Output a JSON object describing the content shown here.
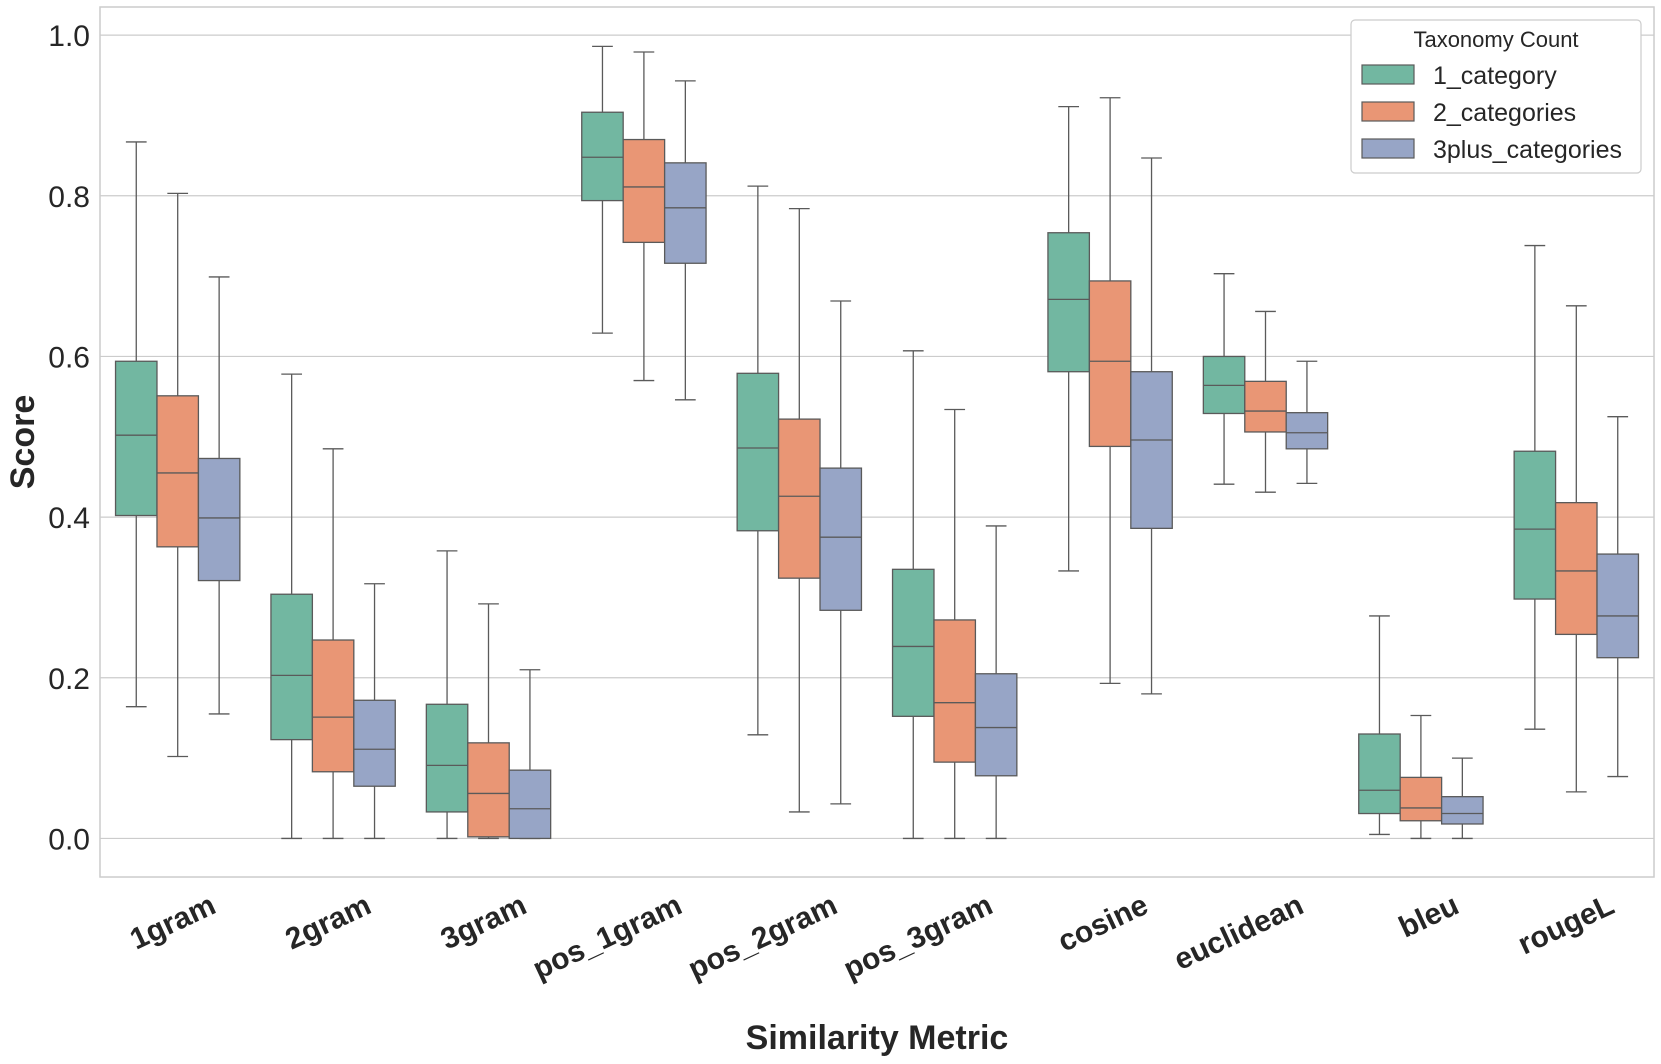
{
  "chart_data": {
    "type": "boxplot",
    "xlabel": "Similarity Metric",
    "ylabel": "Score",
    "ylim": [
      -0.048,
      1.035
    ],
    "yticks": [
      "0.0",
      "0.2",
      "0.4",
      "0.6",
      "0.8",
      "1.0"
    ],
    "grid": "horizontal",
    "legend": {
      "title": "Taxonomy Count",
      "placement": "top-right"
    },
    "categories": [
      "1gram",
      "2gram",
      "3gram",
      "pos_1gram",
      "pos_2gram",
      "pos_3gram",
      "cosine",
      "euclidean",
      "bleu",
      "rougeL"
    ],
    "series": [
      {
        "name": "1_category",
        "color": "#72b7a1",
        "boxes": [
          {
            "whislo": 0.164,
            "q1": 0.402,
            "med": 0.502,
            "q3": 0.594,
            "whishi": 0.867
          },
          {
            "whislo": 0.0,
            "q1": 0.123,
            "med": 0.203,
            "q3": 0.304,
            "whishi": 0.578
          },
          {
            "whislo": 0.0,
            "q1": 0.033,
            "med": 0.091,
            "q3": 0.167,
            "whishi": 0.358
          },
          {
            "whislo": 0.629,
            "q1": 0.794,
            "med": 0.848,
            "q3": 0.904,
            "whishi": 0.986
          },
          {
            "whislo": 0.129,
            "q1": 0.383,
            "med": 0.486,
            "q3": 0.579,
            "whishi": 0.812
          },
          {
            "whislo": 0.0,
            "q1": 0.152,
            "med": 0.239,
            "q3": 0.335,
            "whishi": 0.607
          },
          {
            "whislo": 0.333,
            "q1": 0.581,
            "med": 0.671,
            "q3": 0.754,
            "whishi": 0.911
          },
          {
            "whislo": 0.441,
            "q1": 0.529,
            "med": 0.564,
            "q3": 0.6,
            "whishi": 0.703
          },
          {
            "whislo": 0.005,
            "q1": 0.031,
            "med": 0.06,
            "q3": 0.13,
            "whishi": 0.277
          },
          {
            "whislo": 0.136,
            "q1": 0.298,
            "med": 0.385,
            "q3": 0.482,
            "whishi": 0.738
          }
        ]
      },
      {
        "name": "2_categories",
        "color": "#e99675",
        "boxes": [
          {
            "whislo": 0.102,
            "q1": 0.363,
            "med": 0.455,
            "q3": 0.551,
            "whishi": 0.803
          },
          {
            "whislo": 0.0,
            "q1": 0.083,
            "med": 0.151,
            "q3": 0.247,
            "whishi": 0.485
          },
          {
            "whislo": 0.0,
            "q1": 0.002,
            "med": 0.056,
            "q3": 0.119,
            "whishi": 0.292
          },
          {
            "whislo": 0.57,
            "q1": 0.742,
            "med": 0.811,
            "q3": 0.87,
            "whishi": 0.979
          },
          {
            "whislo": 0.033,
            "q1": 0.324,
            "med": 0.426,
            "q3": 0.522,
            "whishi": 0.784
          },
          {
            "whislo": 0.0,
            "q1": 0.095,
            "med": 0.169,
            "q3": 0.272,
            "whishi": 0.534
          },
          {
            "whislo": 0.193,
            "q1": 0.488,
            "med": 0.594,
            "q3": 0.694,
            "whishi": 0.922
          },
          {
            "whislo": 0.431,
            "q1": 0.506,
            "med": 0.532,
            "q3": 0.569,
            "whishi": 0.656
          },
          {
            "whislo": 0.0,
            "q1": 0.022,
            "med": 0.038,
            "q3": 0.076,
            "whishi": 0.153
          },
          {
            "whislo": 0.058,
            "q1": 0.254,
            "med": 0.333,
            "q3": 0.418,
            "whishi": 0.663
          }
        ]
      },
      {
        "name": "3plus_categories",
        "color": "#97a5c6",
        "boxes": [
          {
            "whislo": 0.155,
            "q1": 0.321,
            "med": 0.399,
            "q3": 0.473,
            "whishi": 0.699
          },
          {
            "whislo": 0.0,
            "q1": 0.065,
            "med": 0.111,
            "q3": 0.172,
            "whishi": 0.317
          },
          {
            "whislo": 0.0,
            "q1": 0.0,
            "med": 0.037,
            "q3": 0.085,
            "whishi": 0.21
          },
          {
            "whislo": 0.546,
            "q1": 0.716,
            "med": 0.785,
            "q3": 0.841,
            "whishi": 0.943
          },
          {
            "whislo": 0.043,
            "q1": 0.284,
            "med": 0.375,
            "q3": 0.461,
            "whishi": 0.669
          },
          {
            "whislo": 0.0,
            "q1": 0.078,
            "med": 0.138,
            "q3": 0.205,
            "whishi": 0.389
          },
          {
            "whislo": 0.18,
            "q1": 0.386,
            "med": 0.496,
            "q3": 0.581,
            "whishi": 0.847
          },
          {
            "whislo": 0.442,
            "q1": 0.485,
            "med": 0.505,
            "q3": 0.53,
            "whishi": 0.594
          },
          {
            "whislo": 0.0,
            "q1": 0.018,
            "med": 0.031,
            "q3": 0.052,
            "whishi": 0.1
          },
          {
            "whislo": 0.077,
            "q1": 0.225,
            "med": 0.277,
            "q3": 0.354,
            "whishi": 0.525
          }
        ]
      }
    ]
  }
}
